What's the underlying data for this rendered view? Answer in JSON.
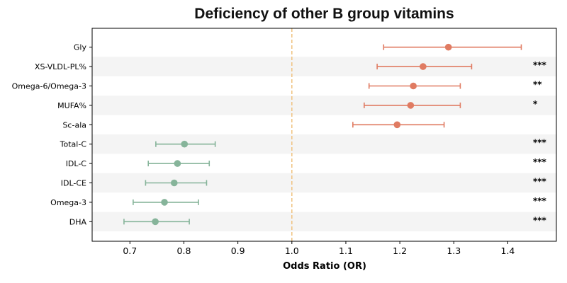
{
  "chart_data": {
    "type": "forest",
    "title": "Deficiency of other B group vitamins",
    "xlabel": "Odds Ratio (OR)",
    "ylabel": "",
    "xlim": [
      0.63,
      1.49
    ],
    "xticks": [
      "0.7",
      "0.8",
      "0.9",
      "1.0",
      "1.1",
      "1.2",
      "1.3",
      "1.4"
    ],
    "reference_line": 1.0,
    "grid": false,
    "colors": {
      "increase": "#e07b62",
      "decrease": "#86b49a",
      "reference": "#f0c27f",
      "band": "#f4f4f4"
    },
    "items": [
      {
        "label": "Gly",
        "or": 1.29,
        "lower": 1.17,
        "upper": 1.425,
        "sig": ""
      },
      {
        "label": "XS-VLDL-PL%",
        "or": 1.243,
        "lower": 1.158,
        "upper": 1.333,
        "sig": "***"
      },
      {
        "label": "Omega-6/Omega-3",
        "or": 1.225,
        "lower": 1.143,
        "upper": 1.312,
        "sig": "**"
      },
      {
        "label": "MUFA%",
        "or": 1.22,
        "lower": 1.134,
        "upper": 1.312,
        "sig": "*"
      },
      {
        "label": "Sc-ala",
        "or": 1.195,
        "lower": 1.113,
        "upper": 1.282,
        "sig": ""
      },
      {
        "label": "Total-C",
        "or": 0.801,
        "lower": 0.748,
        "upper": 0.858,
        "sig": "***"
      },
      {
        "label": "IDL-C",
        "or": 0.788,
        "lower": 0.734,
        "upper": 0.847,
        "sig": "***"
      },
      {
        "label": "IDL-CE",
        "or": 0.782,
        "lower": 0.729,
        "upper": 0.842,
        "sig": "***"
      },
      {
        "label": "Omega-3",
        "or": 0.764,
        "lower": 0.706,
        "upper": 0.827,
        "sig": "***"
      },
      {
        "label": "DHA",
        "or": 0.747,
        "lower": 0.689,
        "upper": 0.81,
        "sig": "***"
      }
    ]
  }
}
